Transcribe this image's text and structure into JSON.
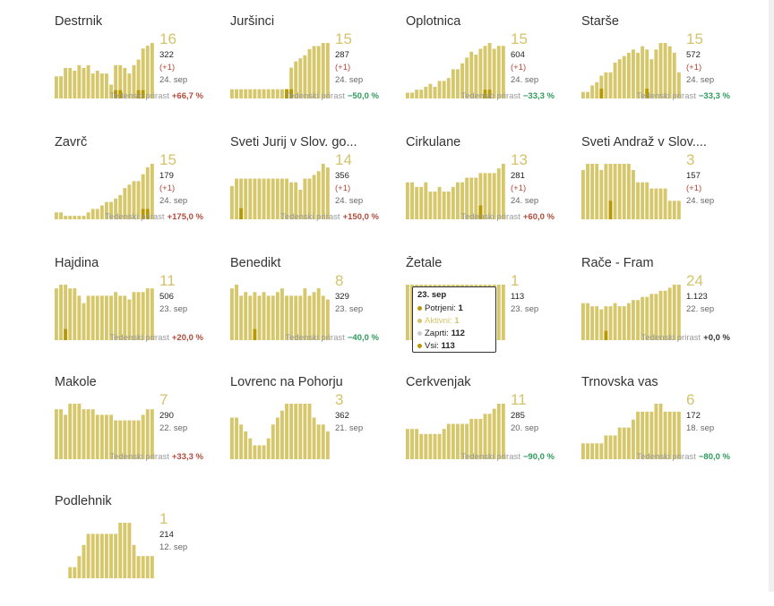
{
  "colors": {
    "bar": "#d6c76b",
    "bar_recent": "#d4c36a",
    "bar_confirmed": "#b89a00",
    "up": "#b24a3a",
    "down": "#2e9a5c"
  },
  "growth_label": "Tedenski prirast",
  "tooltip": {
    "title": "23. sep",
    "rows": [
      {
        "label": "Potrjeni:",
        "value": "1",
        "color": "#b89a00"
      },
      {
        "label": "Aktivni:",
        "value": "1",
        "color": "#d4c36a"
      },
      {
        "label": "Zaprti:",
        "value": "112",
        "color": "#cccccc"
      },
      {
        "label": "Vsi:",
        "value": "113",
        "color": "#b89a00"
      }
    ]
  },
  "chart_data": [
    {
      "type": "bar",
      "title": "Destrnik",
      "active": "16",
      "total": "322",
      "delta": "(+1)",
      "date": "24. sep",
      "growth": "+66,7 %",
      "trend": "up",
      "values": [
        8,
        8,
        11,
        11,
        10,
        12,
        11,
        12,
        9,
        10,
        9,
        9,
        5,
        12,
        12,
        11,
        9,
        12,
        14,
        18,
        19,
        20
      ],
      "confirmed": [
        0,
        0,
        0,
        0,
        0,
        0,
        0,
        0,
        0,
        0,
        0,
        0,
        0,
        1,
        1,
        0,
        0,
        0,
        1,
        1,
        0,
        0
      ]
    },
    {
      "type": "bar",
      "title": "Juršinci",
      "active": "15",
      "total": "287",
      "delta": "(+1)",
      "date": "24. sep",
      "growth": "−50,0 %",
      "trend": "down",
      "values": [
        3,
        3,
        3,
        3,
        3,
        3,
        3,
        3,
        3,
        3,
        3,
        3,
        3,
        10,
        12,
        13,
        14,
        16,
        17,
        17,
        18,
        18
      ],
      "confirmed": [
        0,
        0,
        0,
        0,
        0,
        0,
        0,
        0,
        0,
        0,
        0,
        0,
        1,
        1,
        0,
        0,
        0,
        0,
        0,
        0,
        0,
        0
      ]
    },
    {
      "type": "bar",
      "title": "Oplotnica",
      "active": "15",
      "total": "604",
      "delta": "(+1)",
      "date": "24. sep",
      "growth": "−33,3 %",
      "trend": "down",
      "values": [
        2,
        2,
        3,
        3,
        4,
        5,
        4,
        6,
        6,
        7,
        10,
        10,
        12,
        14,
        16,
        15,
        17,
        18,
        19,
        17,
        18,
        18
      ],
      "confirmed": [
        0,
        0,
        0,
        0,
        0,
        0,
        0,
        0,
        0,
        0,
        0,
        0,
        0,
        0,
        0,
        0,
        0,
        1,
        1,
        0,
        0,
        0
      ]
    },
    {
      "type": "bar",
      "title": "Starše",
      "active": "15",
      "total": "572",
      "delta": "(+1)",
      "date": "24. sep",
      "growth": "−33,3 %",
      "trend": "down",
      "values": [
        2,
        2,
        4,
        5,
        7,
        8,
        8,
        11,
        12,
        13,
        14,
        15,
        14,
        16,
        15,
        12,
        15,
        17,
        17,
        16,
        14,
        8
      ],
      "confirmed": [
        0,
        0,
        0,
        0,
        1,
        0,
        0,
        0,
        0,
        0,
        0,
        0,
        0,
        0,
        1,
        0,
        0,
        0,
        0,
        0,
        0,
        0
      ]
    },
    {
      "type": "bar",
      "title": "Zavrč",
      "active": "15",
      "total": "179",
      "delta": "(+1)",
      "date": "24. sep",
      "growth": "+175,0 %",
      "trend": "up",
      "values": [
        2,
        2,
        1,
        1,
        1,
        1,
        1,
        2,
        3,
        3,
        4,
        5,
        5,
        6,
        7,
        9,
        10,
        11,
        11,
        13,
        15,
        16
      ],
      "confirmed": [
        0,
        0,
        0,
        0,
        0,
        0,
        0,
        0,
        0,
        0,
        0,
        0,
        0,
        0,
        0,
        0,
        0,
        0,
        0,
        1,
        1,
        0
      ]
    },
    {
      "type": "bar",
      "title": "Sveti Jurij v Slov. go...",
      "active": "14",
      "total": "356",
      "delta": "(+1)",
      "date": "24. sep",
      "growth": "+150,0 %",
      "trend": "up",
      "values": [
        9,
        11,
        11,
        11,
        11,
        11,
        11,
        11,
        11,
        11,
        11,
        11,
        11,
        10,
        10,
        8,
        11,
        11,
        12,
        13,
        15,
        14
      ],
      "confirmed": [
        0,
        0,
        1,
        0,
        0,
        0,
        0,
        0,
        0,
        0,
        0,
        0,
        0,
        0,
        0,
        0,
        0,
        0,
        0,
        0,
        0,
        0
      ]
    },
    {
      "type": "bar",
      "title": "Cirkulane",
      "active": "13",
      "total": "281",
      "delta": "(+1)",
      "date": "24. sep",
      "growth": "+60,0 %",
      "trend": "up",
      "values": [
        8,
        8,
        7,
        7,
        8,
        6,
        6,
        7,
        6,
        6,
        7,
        8,
        8,
        9,
        9,
        9,
        10,
        10,
        10,
        10,
        11,
        12
      ],
      "confirmed": [
        0,
        0,
        0,
        0,
        0,
        0,
        0,
        0,
        0,
        0,
        0,
        0,
        0,
        0,
        0,
        0,
        1,
        0,
        0,
        0,
        0,
        0
      ]
    },
    {
      "type": "bar",
      "title": "Sveti Andraž v Slov....",
      "active": "3",
      "total": "157",
      "delta": "(+1)",
      "date": "24. sep",
      "growth": "",
      "trend": "none",
      "values": [
        8,
        9,
        9,
        9,
        8,
        9,
        9,
        9,
        9,
        9,
        9,
        8,
        6,
        6,
        6,
        5,
        5,
        5,
        5,
        3,
        3,
        3
      ],
      "confirmed": [
        0,
        0,
        0,
        0,
        0,
        0,
        1,
        0,
        0,
        0,
        0,
        0,
        0,
        0,
        0,
        0,
        0,
        0,
        0,
        0,
        0,
        0
      ]
    },
    {
      "type": "bar",
      "title": "Hajdina",
      "active": "11",
      "total": "506",
      "delta": "",
      "date": "23. sep",
      "growth": "+20,0 %",
      "trend": "up",
      "values": [
        14,
        15,
        15,
        14,
        14,
        12,
        10,
        12,
        12,
        12,
        12,
        12,
        12,
        13,
        12,
        12,
        11,
        13,
        13,
        13,
        14,
        14
      ],
      "confirmed": [
        0,
        0,
        1,
        0,
        0,
        0,
        0,
        0,
        0,
        0,
        0,
        0,
        0,
        0,
        0,
        0,
        0,
        0,
        0,
        0,
        0,
        0
      ]
    },
    {
      "type": "bar",
      "title": "Benedikt",
      "active": "8",
      "total": "329",
      "delta": "",
      "date": "23. sep",
      "growth": "−40,0 %",
      "trend": "down",
      "values": [
        14,
        15,
        12,
        13,
        12,
        13,
        12,
        13,
        12,
        12,
        13,
        14,
        12,
        12,
        12,
        12,
        14,
        12,
        13,
        14,
        12,
        11
      ],
      "confirmed": [
        0,
        0,
        0,
        0,
        0,
        1,
        0,
        0,
        0,
        0,
        0,
        0,
        0,
        0,
        0,
        0,
        0,
        0,
        0,
        0,
        0,
        0
      ]
    },
    {
      "type": "bar",
      "title": "Žetale",
      "active": "1",
      "total": "113",
      "delta": "",
      "date": "23. sep",
      "growth": "",
      "trend": "none",
      "values": [
        12,
        12,
        12,
        12,
        12,
        12,
        12,
        12,
        12,
        12,
        12,
        12,
        12,
        12,
        12,
        12,
        12,
        12,
        12,
        12,
        12,
        12
      ],
      "confirmed": [
        0,
        0,
        0,
        0,
        0,
        0,
        0,
        0,
        0,
        0,
        0,
        0,
        0,
        0,
        0,
        0,
        0,
        0,
        0,
        0,
        0,
        0
      ]
    },
    {
      "type": "bar",
      "title": "Rače - Fram",
      "active": "24",
      "total": "1.123",
      "delta": "",
      "date": "22. sep",
      "growth": "+0,0 %",
      "trend": "zero",
      "values": [
        12,
        12,
        11,
        11,
        10,
        11,
        11,
        12,
        11,
        11,
        12,
        13,
        13,
        14,
        14,
        15,
        15,
        16,
        16,
        17,
        18,
        18
      ],
      "confirmed": [
        0,
        0,
        0,
        0,
        0,
        1,
        0,
        0,
        0,
        0,
        0,
        0,
        0,
        0,
        0,
        0,
        0,
        0,
        0,
        0,
        0,
        0
      ]
    },
    {
      "type": "bar",
      "title": "Makole",
      "active": "7",
      "total": "290",
      "delta": "",
      "date": "22. sep",
      "growth": "+33,3 %",
      "trend": "up",
      "values": [
        9,
        9,
        8,
        10,
        10,
        10,
        9,
        9,
        9,
        8,
        8,
        8,
        8,
        7,
        7,
        7,
        7,
        7,
        7,
        8,
        9,
        9
      ],
      "confirmed": [
        0,
        0,
        0,
        0,
        0,
        0,
        0,
        0,
        0,
        0,
        0,
        0,
        0,
        0,
        0,
        0,
        0,
        0,
        0,
        0,
        0,
        0
      ]
    },
    {
      "type": "bar",
      "title": "Lovrenc na Pohorju",
      "active": "3",
      "total": "362",
      "delta": "",
      "date": "21. sep",
      "growth": "",
      "trend": "none",
      "values": [
        6,
        6,
        5,
        4,
        3,
        2,
        2,
        2,
        3,
        5,
        6,
        7,
        8,
        8,
        8,
        8,
        8,
        8,
        6,
        5,
        5,
        4
      ],
      "confirmed": [
        0,
        0,
        0,
        0,
        0,
        0,
        0,
        0,
        0,
        0,
        0,
        0,
        0,
        0,
        0,
        0,
        0,
        0,
        0,
        0,
        0,
        0
      ]
    },
    {
      "type": "bar",
      "title": "Cerkvenjak",
      "active": "11",
      "total": "285",
      "delta": "",
      "date": "20. sep",
      "growth": "−90,0 %",
      "trend": "down",
      "values": [
        6,
        6,
        6,
        5,
        5,
        5,
        5,
        5,
        6,
        7,
        7,
        7,
        7,
        7,
        8,
        8,
        8,
        9,
        9,
        10,
        11,
        11
      ],
      "confirmed": [
        0,
        0,
        0,
        0,
        0,
        0,
        0,
        0,
        0,
        0,
        0,
        0,
        0,
        0,
        0,
        0,
        0,
        0,
        0,
        0,
        0,
        0
      ]
    },
    {
      "type": "bar",
      "title": "Trnovska vas",
      "active": "6",
      "total": "172",
      "delta": "",
      "date": "18. sep",
      "growth": "−80,0 %",
      "trend": "down",
      "values": [
        2,
        2,
        2,
        2,
        2,
        3,
        3,
        3,
        4,
        4,
        4,
        5,
        6,
        6,
        6,
        6,
        7,
        7,
        6,
        6,
        6,
        6
      ],
      "confirmed": [
        0,
        0,
        0,
        0,
        0,
        0,
        0,
        0,
        0,
        0,
        0,
        0,
        0,
        0,
        0,
        0,
        0,
        0,
        0,
        0,
        0,
        0
      ]
    },
    {
      "type": "bar",
      "title": "Podlehnik",
      "active": "1",
      "total": "214",
      "delta": "",
      "date": "12. sep",
      "growth": "",
      "trend": "none",
      "values": [
        0,
        0,
        0,
        1,
        1,
        2,
        3,
        4,
        4,
        4,
        4,
        4,
        4,
        4,
        5,
        5,
        5,
        3,
        2,
        2,
        2,
        2
      ],
      "confirmed": [
        0,
        0,
        0,
        0,
        0,
        0,
        0,
        0,
        0,
        0,
        0,
        0,
        0,
        0,
        0,
        0,
        0,
        0,
        0,
        0,
        0,
        0
      ]
    }
  ]
}
